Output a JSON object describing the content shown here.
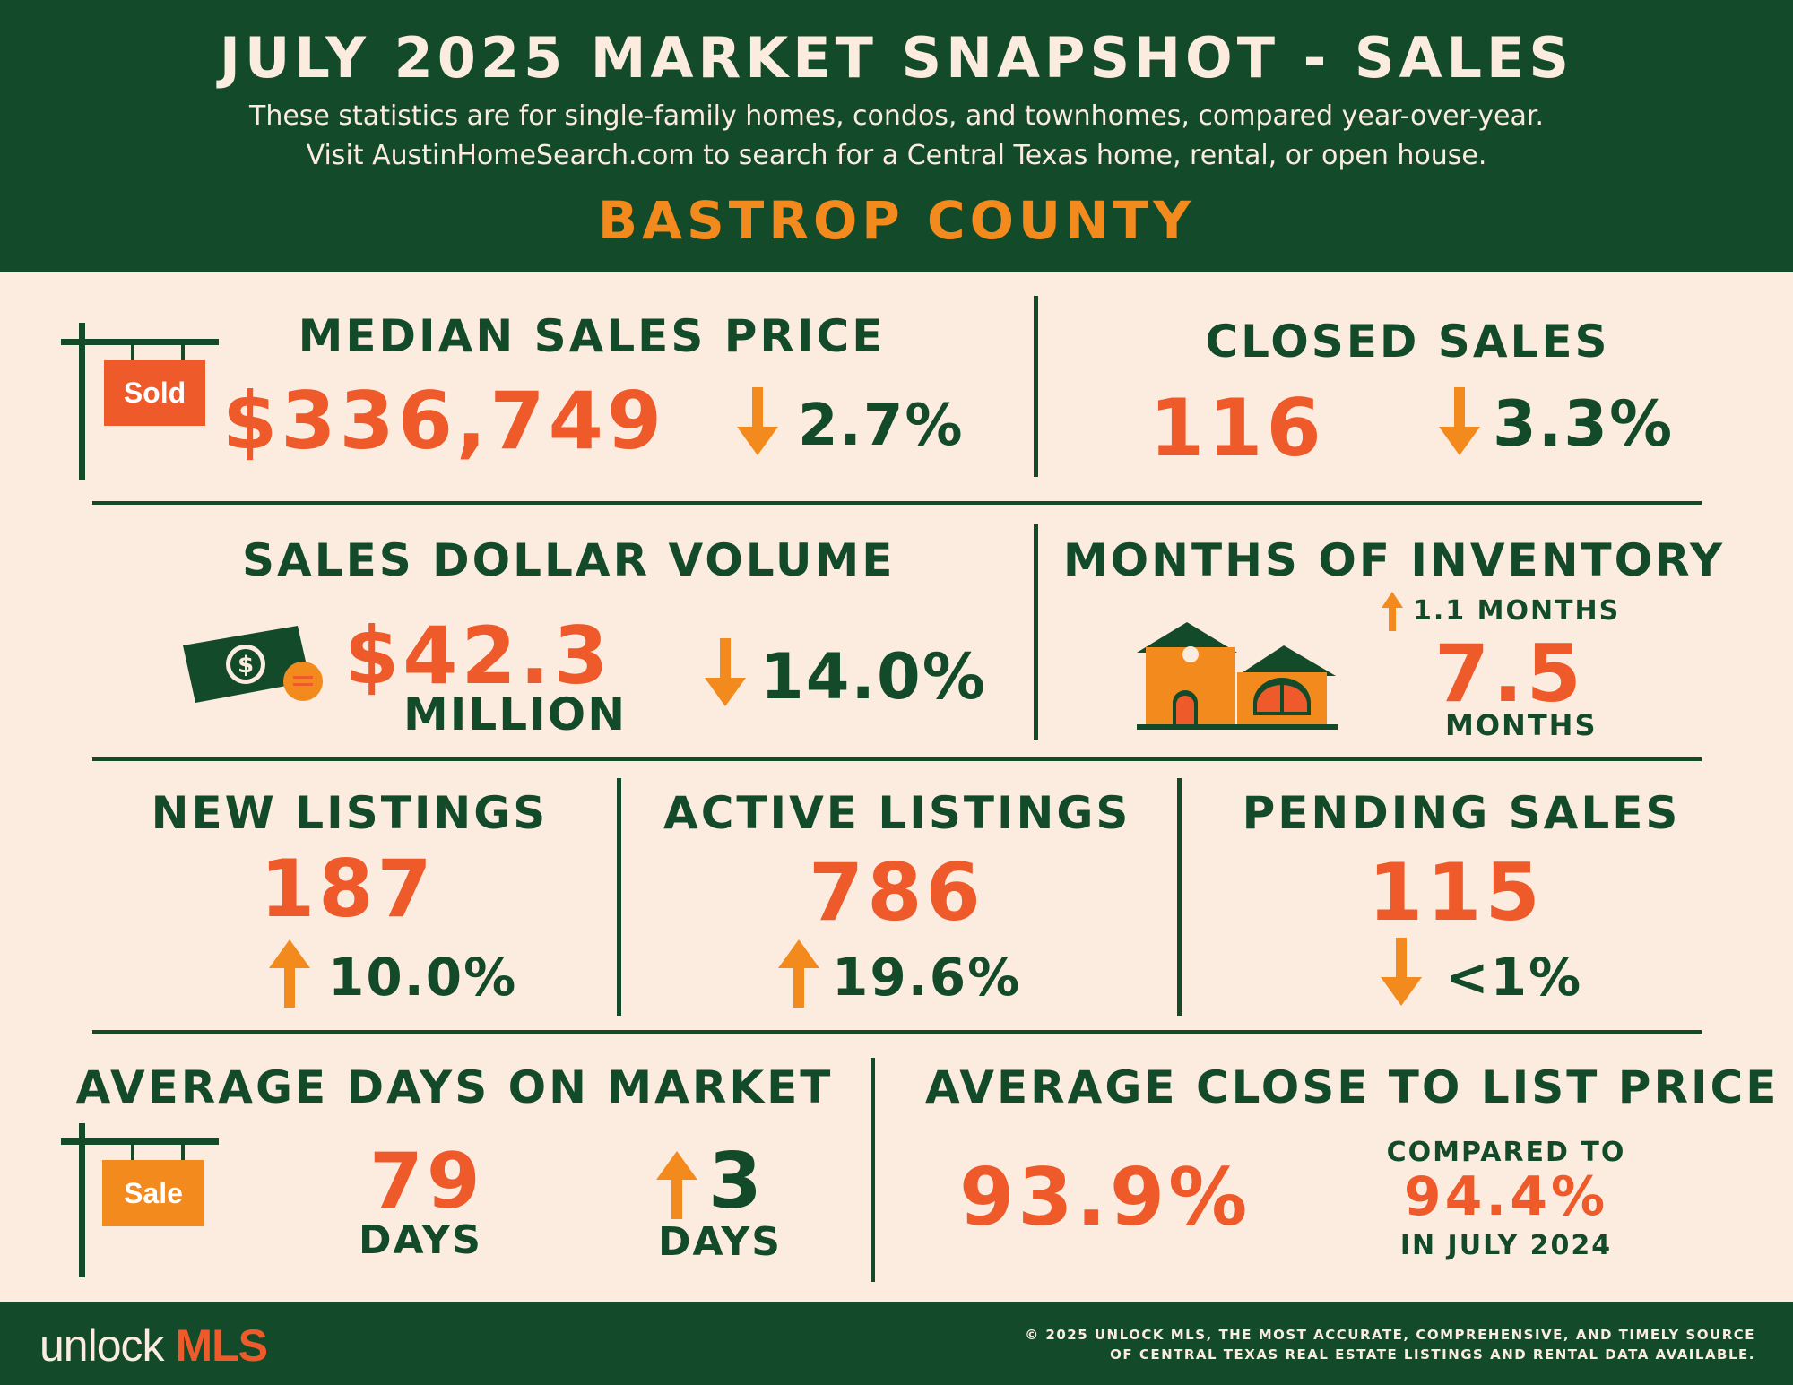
{
  "header": {
    "title": "JULY 2025 MARKET SNAPSHOT - SALES",
    "subtitle_line1": "These statistics are for single-family homes, condos, and townhomes, compared year-over-year.",
    "subtitle_line2": "Visit AustinHomeSearch.com to search for a Central Texas home, rental, or open house.",
    "county": "BASTROP COUNTY"
  },
  "median_sales_price": {
    "heading": "MEDIAN SALES PRICE",
    "value": "$336,749",
    "change": "2.7%",
    "direction": "down",
    "sign_label": "Sold"
  },
  "closed_sales": {
    "heading": "CLOSED SALES",
    "value": "116",
    "change": "3.3%",
    "direction": "down"
  },
  "sales_dollar_volume": {
    "heading": "SALES DOLLAR VOLUME",
    "value": "$42.3",
    "unit": "MILLION",
    "change": "14.0%",
    "direction": "down"
  },
  "months_of_inventory": {
    "heading": "MONTHS OF INVENTORY",
    "change": "1.1  MONTHS",
    "direction": "up",
    "value": "7.5",
    "unit": "MONTHS"
  },
  "new_listings": {
    "heading": "NEW LISTINGS",
    "value": "187",
    "change": "10.0%",
    "direction": "up"
  },
  "active_listings": {
    "heading": "ACTIVE LISTINGS",
    "value": "786",
    "change": "19.6%",
    "direction": "up"
  },
  "pending_sales": {
    "heading": "PENDING SALES",
    "value": "115",
    "change": "<1%",
    "direction": "down"
  },
  "average_days_on_market": {
    "heading": "AVERAGE DAYS ON MARKET",
    "value": "79",
    "unit": "DAYS",
    "change": "3",
    "change_unit": "DAYS",
    "direction": "up",
    "sign_label": "Sale"
  },
  "average_close_to_list": {
    "heading": "AVERAGE CLOSE TO LIST PRICE",
    "value": "93.9%",
    "compare_label": "COMPARED TO",
    "compare_value": "94.4%",
    "compare_period": "IN JULY 2024"
  },
  "footer": {
    "brand_unlock": "unlock",
    "brand_mls": "MLS",
    "legal_line1": "© 2025 UNLOCK MLS, THE MOST ACCURATE, COMPREHENSIVE, AND TIMELY SOURCE",
    "legal_line2": "OF CENTRAL TEXAS REAL ESTATE LISTINGS AND RENTAL DATA AVAILABLE."
  },
  "colors": {
    "dark_green": "#134a2a",
    "cream": "#fcece0",
    "red_orange": "#ee5a2a",
    "amber": "#f28a1e"
  },
  "icons": [
    "sold-sign-icon",
    "money-bill-icon",
    "house-icon",
    "sale-sign-icon",
    "arrow-down-icon",
    "arrow-up-icon"
  ]
}
